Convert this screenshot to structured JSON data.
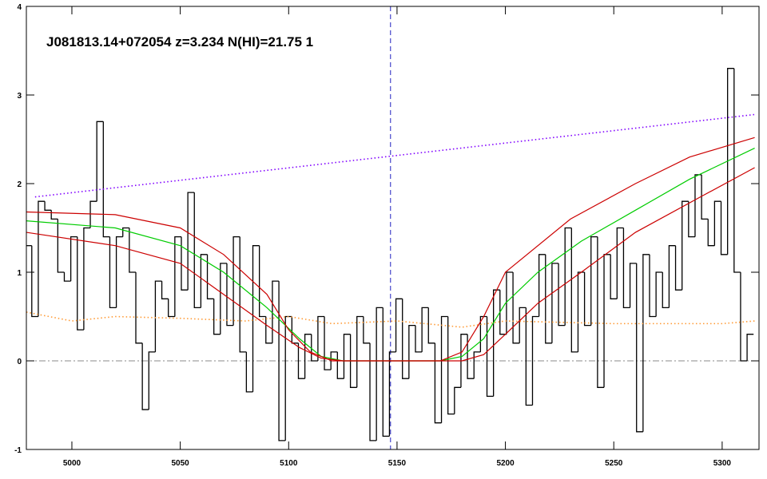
{
  "chart_data": {
    "type": "line",
    "title": "J081813.14+072054 z=3.234 N(HI)=21.75 1",
    "xlim": [
      4979,
      5317
    ],
    "ylim": [
      -1,
      4
    ],
    "xticks": [
      5000,
      5050,
      5100,
      5150,
      5200,
      5250,
      5300
    ],
    "yticks": [
      -1,
      0,
      1,
      2,
      3,
      4
    ],
    "zero_line": 0,
    "vline": 5147,
    "vline_color": "#2020c0",
    "series": [
      {
        "name": "flux",
        "color": "#000000",
        "style": "steps",
        "x": [
          4980,
          4983,
          4986,
          4989,
          4992,
          4995,
          4998,
          5001,
          5004,
          5007,
          5010,
          5013,
          5016,
          5019,
          5022,
          5025,
          5028,
          5031,
          5034,
          5037,
          5040,
          5043,
          5046,
          5049,
          5052,
          5055,
          5058,
          5061,
          5064,
          5067,
          5070,
          5073,
          5076,
          5079,
          5082,
          5085,
          5088,
          5091,
          5094,
          5097,
          5100,
          5103,
          5106,
          5109,
          5112,
          5115,
          5118,
          5121,
          5124,
          5127,
          5130,
          5133,
          5136,
          5139,
          5142,
          5145,
          5148,
          5151,
          5154,
          5157,
          5160,
          5163,
          5166,
          5169,
          5172,
          5175,
          5178,
          5181,
          5184,
          5187,
          5190,
          5193,
          5196,
          5199,
          5202,
          5205,
          5208,
          5211,
          5214,
          5217,
          5220,
          5223,
          5226,
          5229,
          5232,
          5235,
          5238,
          5241,
          5244,
          5247,
          5250,
          5253,
          5256,
          5259,
          5262,
          5265,
          5268,
          5271,
          5274,
          5277,
          5280,
          5283,
          5286,
          5289,
          5292,
          5295,
          5298,
          5301,
          5304,
          5307,
          5310,
          5313
        ],
        "values": [
          1.3,
          0.5,
          1.8,
          1.7,
          1.6,
          1.0,
          0.9,
          1.4,
          0.35,
          1.5,
          1.8,
          2.7,
          1.4,
          0.6,
          1.4,
          1.5,
          1.0,
          0.2,
          -0.55,
          0.1,
          0.9,
          0.7,
          0.5,
          1.4,
          0.8,
          1.9,
          0.6,
          1.2,
          0.7,
          0.3,
          1.1,
          0.4,
          1.4,
          0.1,
          -0.35,
          1.3,
          0.5,
          0.2,
          0.9,
          -0.9,
          0.5,
          0.2,
          -0.2,
          0.3,
          0.0,
          0.5,
          -0.1,
          0.1,
          -0.2,
          0.3,
          -0.3,
          0.5,
          0.2,
          -0.9,
          0.6,
          -0.85,
          0.1,
          0.7,
          -0.2,
          0.4,
          0.1,
          0.6,
          0.2,
          -0.7,
          0.5,
          -0.6,
          -0.3,
          0.3,
          -0.2,
          0.1,
          0.5,
          -0.4,
          0.8,
          0.3,
          1.0,
          0.2,
          0.6,
          -0.5,
          0.5,
          1.2,
          0.2,
          1.1,
          0.4,
          1.5,
          0.1,
          1.0,
          0.4,
          1.4,
          -0.3,
          1.2,
          0.7,
          1.5,
          0.6,
          1.1,
          -0.8,
          1.2,
          0.5,
          1.0,
          0.6,
          1.3,
          0.8,
          1.8,
          1.4,
          2.1,
          1.6,
          1.3,
          1.8,
          1.2,
          3.3,
          1.0,
          0.0,
          0.3
        ]
      },
      {
        "name": "continuum",
        "color": "#8000ff",
        "style": "dotted",
        "x": [
          4983,
          5315
        ],
        "values": [
          1.85,
          2.78
        ]
      },
      {
        "name": "error",
        "color": "#ff9933",
        "style": "dotted",
        "x": [
          4979,
          5000,
          5020,
          5050,
          5080,
          5100,
          5120,
          5150,
          5180,
          5200,
          5250,
          5300,
          5315
        ],
        "values": [
          0.55,
          0.45,
          0.5,
          0.48,
          0.45,
          0.5,
          0.42,
          0.45,
          0.38,
          0.45,
          0.42,
          0.42,
          0.45
        ]
      },
      {
        "name": "fit",
        "color": "#00cc00",
        "style": "solid",
        "x": [
          4979,
          5020,
          5050,
          5070,
          5090,
          5105,
          5115,
          5125,
          5170,
          5180,
          5190,
          5200,
          5215,
          5235,
          5260,
          5285,
          5315
        ],
        "values": [
          1.58,
          1.5,
          1.3,
          1.0,
          0.6,
          0.25,
          0.05,
          0,
          0,
          0.05,
          0.25,
          0.65,
          1.0,
          1.35,
          1.7,
          2.05,
          2.4
        ]
      },
      {
        "name": "fit-upper",
        "color": "#cc0000",
        "style": "solid",
        "x": [
          4979,
          5020,
          5050,
          5070,
          5090,
          5100,
          5110,
          5120,
          5170,
          5180,
          5190,
          5200,
          5230,
          5260,
          5285,
          5315
        ],
        "values": [
          1.68,
          1.65,
          1.5,
          1.2,
          0.75,
          0.35,
          0.1,
          0,
          0,
          0.1,
          0.5,
          1.0,
          1.6,
          2.0,
          2.3,
          2.52
        ]
      },
      {
        "name": "fit-lower",
        "color": "#cc0000",
        "style": "solid",
        "x": [
          4979,
          5020,
          5050,
          5070,
          5090,
          5105,
          5115,
          5125,
          5180,
          5190,
          5200,
          5215,
          5235,
          5260,
          5290,
          5315
        ],
        "values": [
          1.45,
          1.3,
          1.1,
          0.75,
          0.4,
          0.15,
          0.03,
          0,
          0,
          0.07,
          0.3,
          0.65,
          1.0,
          1.45,
          1.85,
          2.18
        ]
      }
    ]
  }
}
